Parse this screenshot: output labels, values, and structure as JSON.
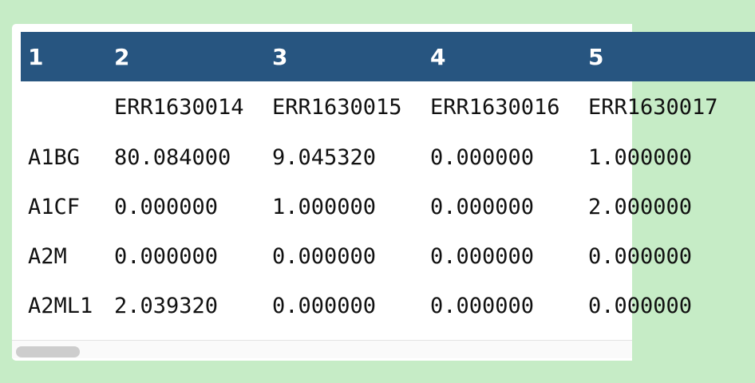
{
  "table": {
    "headers": [
      "1",
      "2",
      "3",
      "4",
      "5"
    ],
    "rows": [
      [
        "",
        "ERR1630014",
        "ERR1630015",
        "ERR1630016",
        "ERR1630017"
      ],
      [
        "A1BG",
        "80.084000",
        "9.045320",
        "0.000000",
        "1.000000"
      ],
      [
        "A1CF",
        "0.000000",
        "1.000000",
        "0.000000",
        "2.000000"
      ],
      [
        "A2M",
        "0.000000",
        "0.000000",
        "0.000000",
        "0.000000"
      ],
      [
        "A2ML1",
        "2.039320",
        "0.000000",
        "0.000000",
        "0.000000"
      ]
    ]
  },
  "colors": {
    "background": "#c6ecc6",
    "header_bg": "#275580",
    "header_text": "#ffffff",
    "scroll_thumb": "#cdcdcd"
  }
}
